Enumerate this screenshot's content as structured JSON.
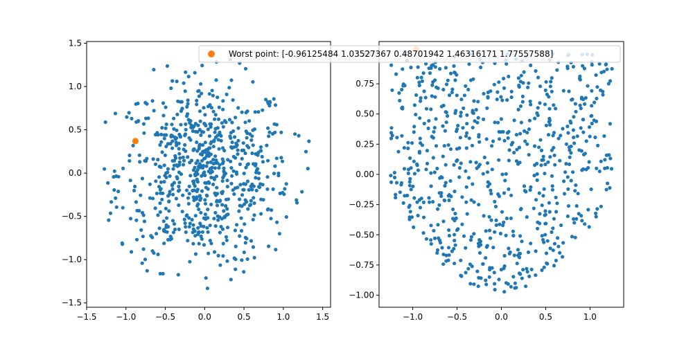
{
  "colors": {
    "series": "#1f77b4",
    "highlight": "#ff7f0e",
    "axes": "#000000"
  },
  "legend": {
    "label": "Worst point: [-0.96125484  1.03527367  0.48701942  1.46316171  1.77557588]",
    "placement": "top-right of left panel"
  },
  "chart_data": [
    {
      "type": "scatter",
      "xlim": [
        -1.5,
        1.6
      ],
      "ylim": [
        -1.55,
        1.52
      ],
      "xticks": [
        -1.5,
        -1.0,
        -0.5,
        0.0,
        0.5,
        1.0,
        1.5
      ],
      "xtick_labels": [
        "−1.5",
        "−1.0",
        "−0.5",
        "0.0",
        "0.5",
        "1.0",
        "1.5"
      ],
      "yticks": [
        -1.5,
        -1.0,
        -0.5,
        0.0,
        0.5,
        1.0,
        1.5
      ],
      "ytick_labels": [
        "−1.5",
        "−1.0",
        "−0.5",
        "0.0",
        "0.5",
        "1.0",
        "1.5"
      ],
      "grid": false,
      "series": [
        {
          "points": "generated-cloud-disk",
          "count": 720,
          "radius_x": 1.45,
          "radius_y": 1.35
        }
      ],
      "highlight": {
        "x": -0.88,
        "y": 0.37
      }
    },
    {
      "type": "scatter",
      "xlim": [
        -1.38,
        1.38
      ],
      "ylim": [
        -1.1,
        1.1
      ],
      "xticks": [
        -1.0,
        -0.5,
        0.0,
        0.5,
        1.0
      ],
      "xtick_labels": [
        "−1.0",
        "−0.5",
        "0.0",
        "0.5",
        "1.0"
      ],
      "yticks": [
        -1.0,
        -0.75,
        -0.5,
        -0.25,
        0.0,
        0.25,
        0.5,
        0.75,
        1.0
      ],
      "ytick_labels": [
        "−1.00",
        "−0.75",
        "−0.50",
        "−0.25",
        "0.00",
        "0.25",
        "0.50",
        "0.75",
        "1.00"
      ],
      "grid": false,
      "series": [
        {
          "points": "generated-cloud-bowl",
          "count": 720
        }
      ],
      "highlight": {
        "x": -0.96,
        "y": 1.035
      }
    }
  ]
}
